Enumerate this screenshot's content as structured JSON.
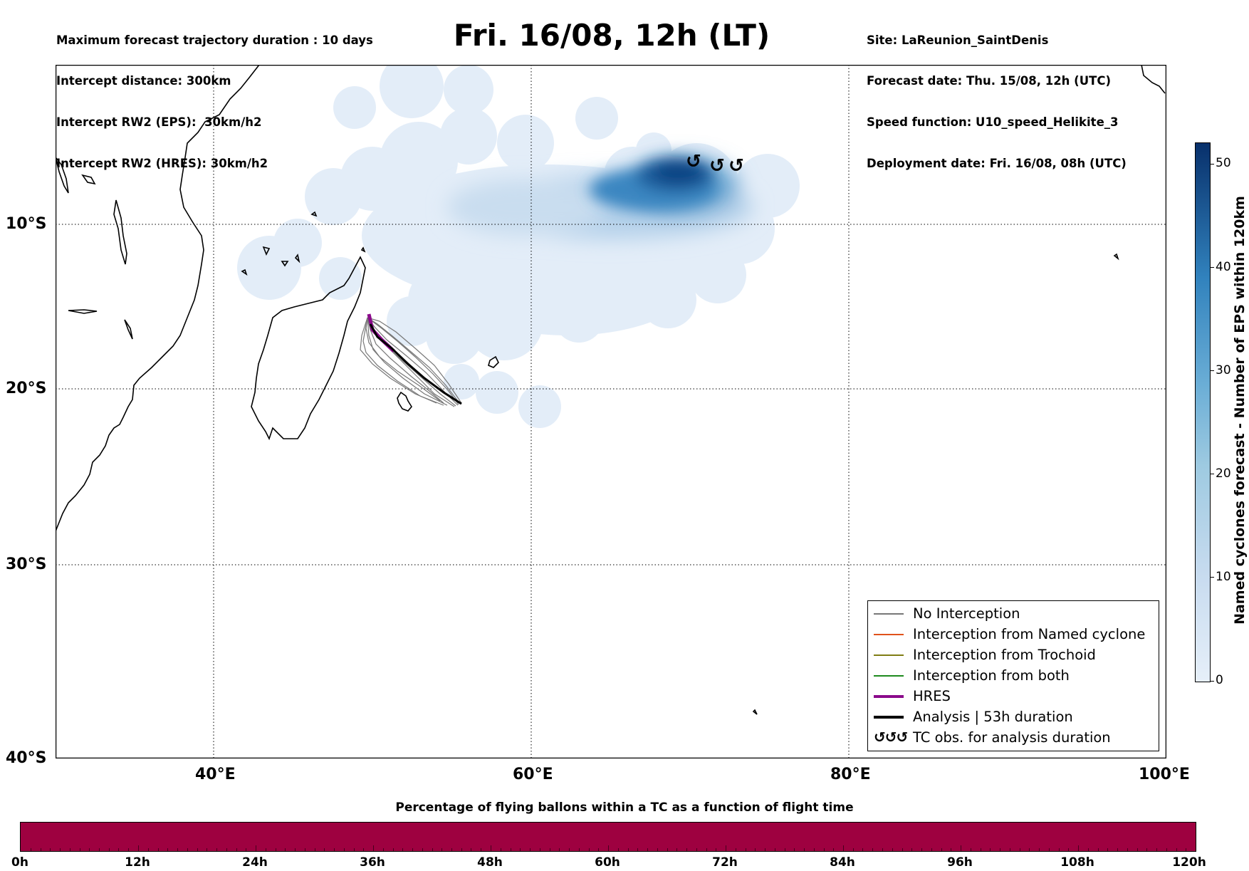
{
  "header": {
    "left_lines": [
      "Maximum forecast trajectory duration : 10 days",
      "Intercept distance: 300km",
      "Intercept RW2 (EPS):  30km/h2",
      "Intercept RW2 (HRES): 30km/h2"
    ],
    "title": "Fri. 16/08, 12h (LT)",
    "right_lines": [
      "Site: LaReunion_SaintDenis",
      "Forecast date: Thu. 15/08, 12h (UTC)",
      "Speed function: U10_speed_Helikite_3",
      "Deployment date: Fri. 16/08, 08h (UTC)"
    ]
  },
  "map": {
    "lat_labels": [
      "10°S",
      "20°S",
      "30°S",
      "40°S"
    ],
    "lon_labels": [
      "40°E",
      "60°E",
      "80°E",
      "100°E"
    ],
    "gridlines": "dotted",
    "tc_obs_symbol": "↺"
  },
  "legend": {
    "items": [
      {
        "label": "No Interception",
        "color": "#777777",
        "style": "thin"
      },
      {
        "label": "Interception from Named cyclone",
        "color": "#e0521b",
        "style": "thin"
      },
      {
        "label": "Interception from Trochoid",
        "color": "#807d13",
        "style": "thin"
      },
      {
        "label": "Interception from both",
        "color": "#1e8a1e",
        "style": "thin"
      },
      {
        "label": "HRES",
        "color": "#8b0a8b",
        "style": "thick"
      },
      {
        "label": "Analysis | 53h duration",
        "color": "#000000",
        "style": "thick"
      },
      {
        "label": "TC obs. for analysis duration",
        "color": "#000000",
        "style": "symbol",
        "symbol": "↺↺↺"
      }
    ]
  },
  "colorbar_right": {
    "label": "Named cyclones forecast - Number of EPS within 120km",
    "ticks": [
      "0",
      "10",
      "20",
      "30",
      "40",
      "50"
    ],
    "range": [
      0,
      52
    ],
    "colormap": "Blues"
  },
  "colorbar_bottom": {
    "title": "Percentage of flying ballons within a TC as a function of flight time",
    "ticks": [
      "0h",
      "12h",
      "24h",
      "36h",
      "48h",
      "60h",
      "72h",
      "84h",
      "96h",
      "108h",
      "120h"
    ],
    "fill_color": "#9e0140"
  }
}
